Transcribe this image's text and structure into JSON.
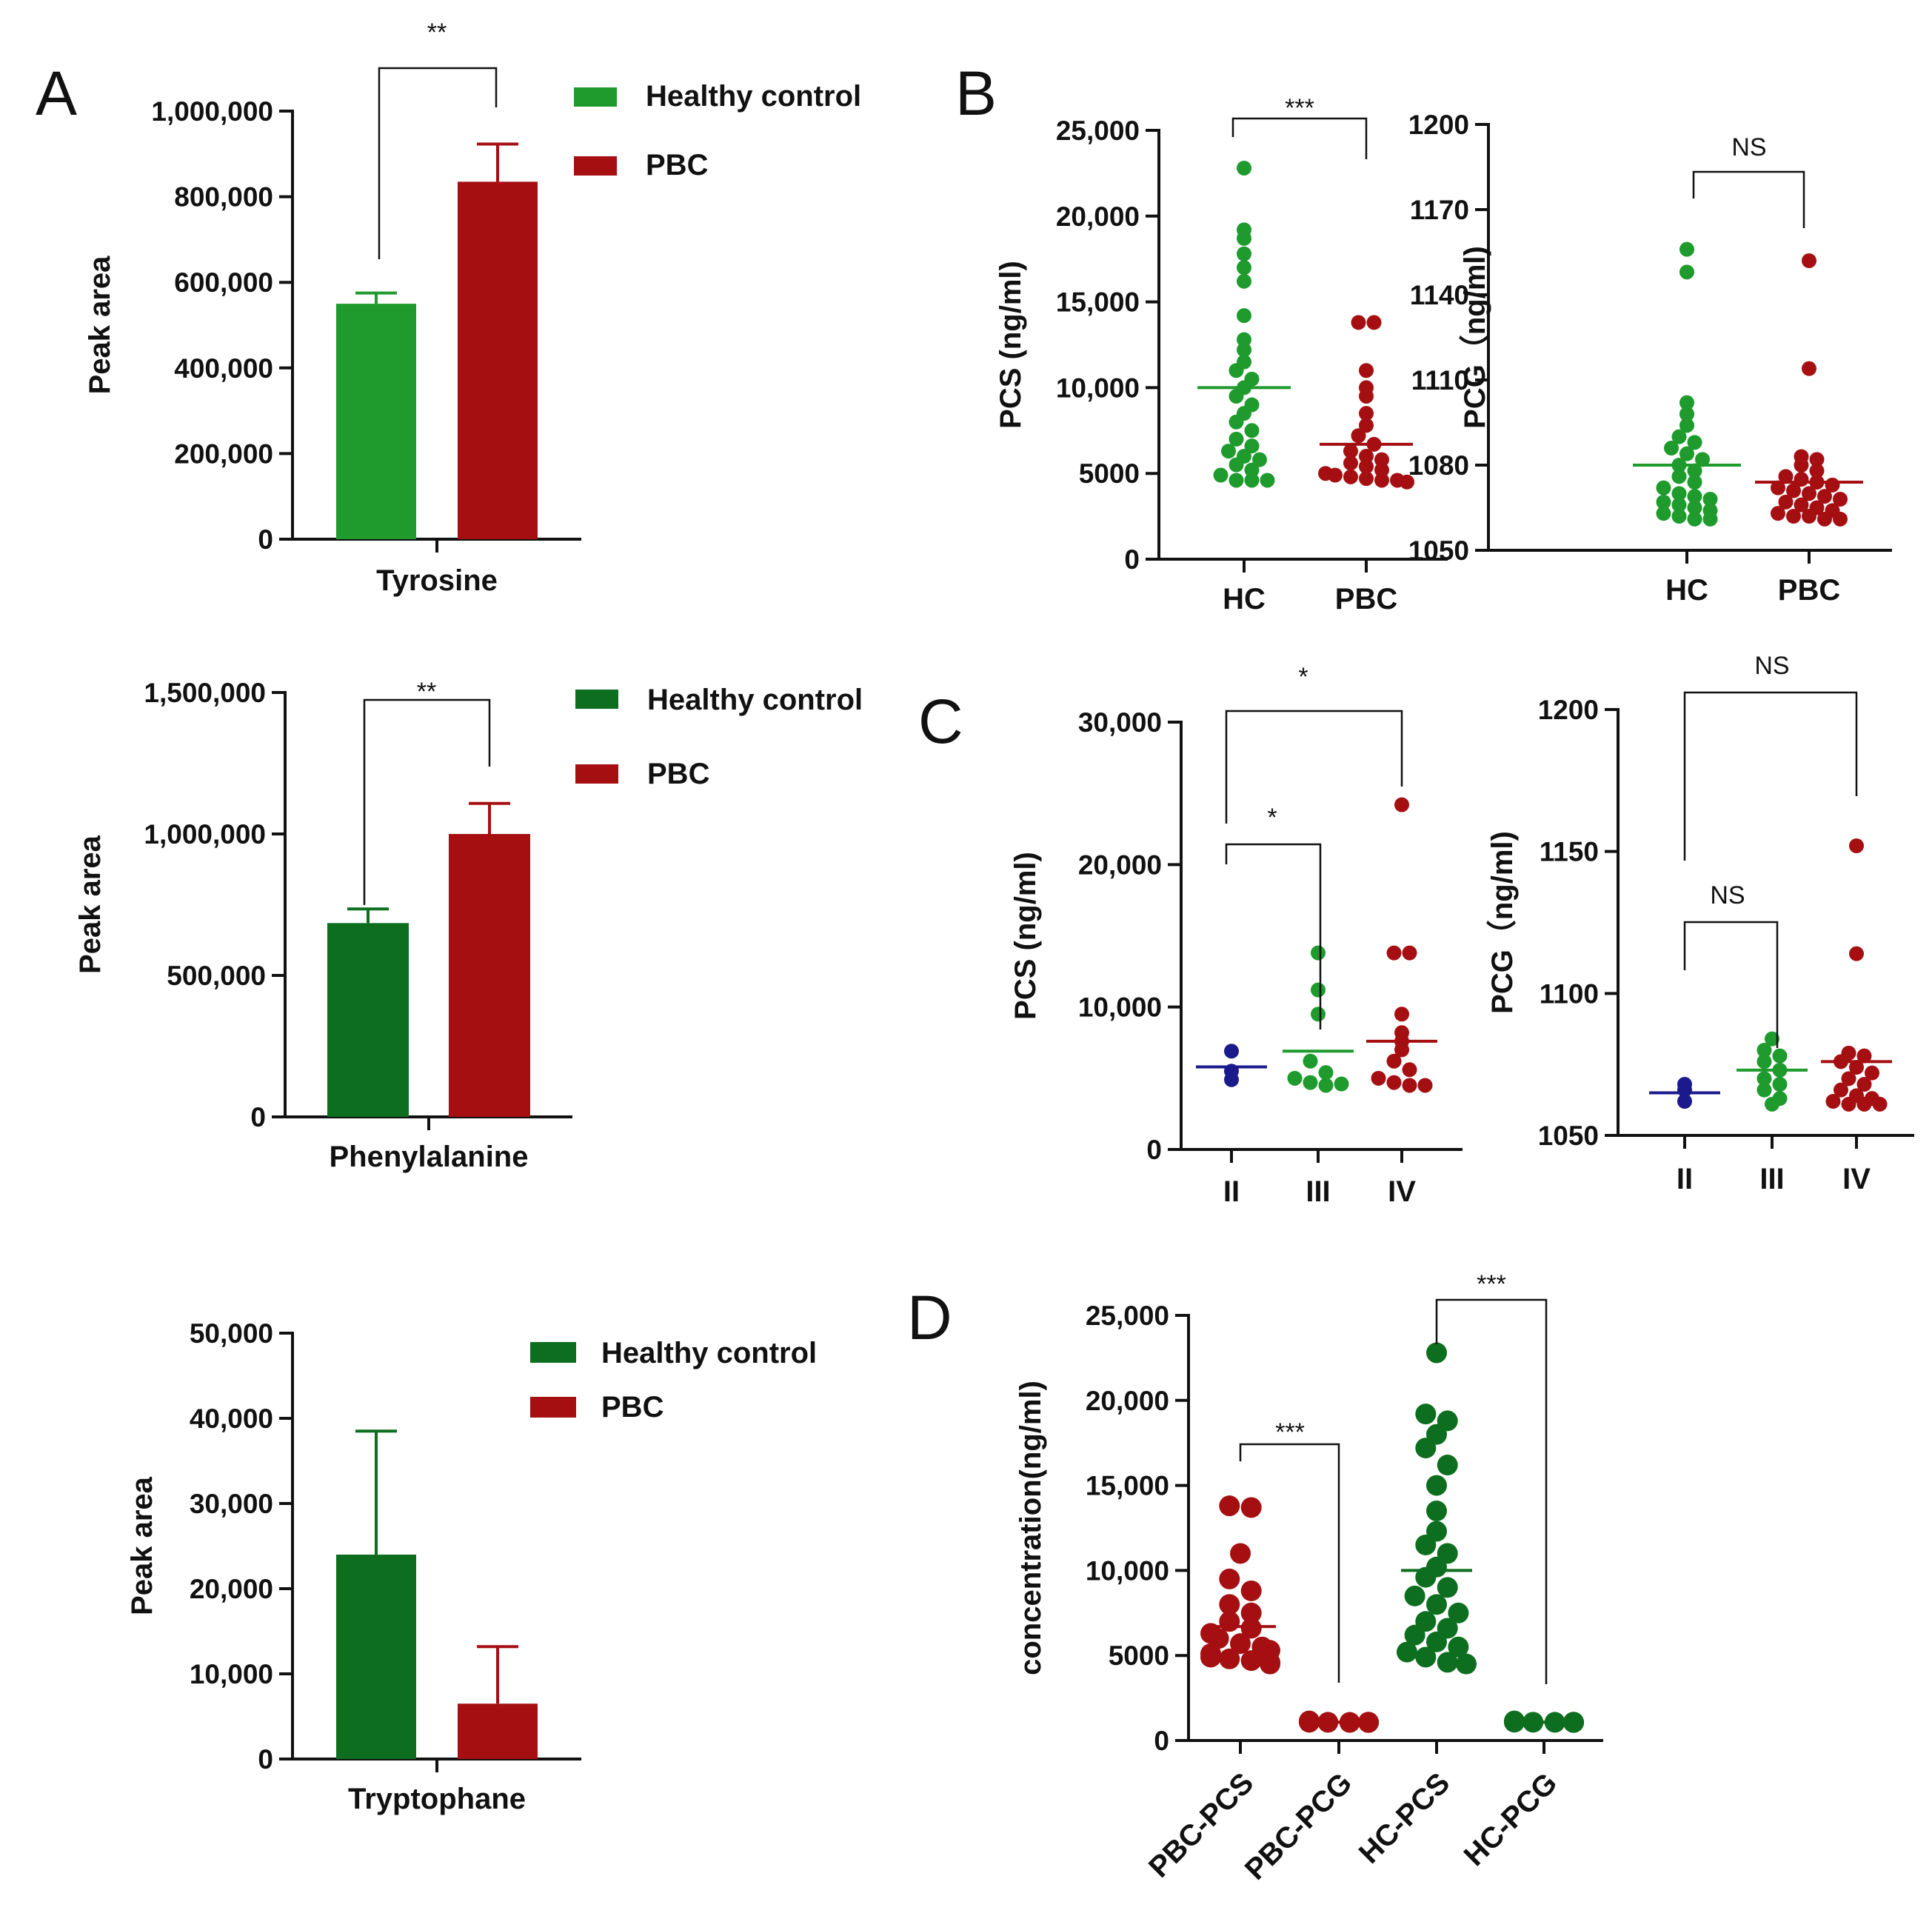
{
  "panel_labels": {
    "A": "A",
    "B": "B",
    "C": "C",
    "D": "D"
  },
  "colors": {
    "green": "#1f9a2d",
    "dark_green": "#0d6e1f",
    "red": "#a50f12",
    "blue": "#1a1a8c",
    "axis": "#111111"
  },
  "chart_data": [
    {
      "id": "A1",
      "type": "bar",
      "categories": [
        "Tyrosine"
      ],
      "ylabel": "Peak area",
      "ylim": [
        0,
        1000000
      ],
      "yticks": [
        0,
        200000,
        400000,
        600000,
        800000,
        1000000
      ],
      "ytick_labels": [
        "0",
        "200,000",
        "400,000",
        "600,000",
        "800,000",
        "1,000,000"
      ],
      "series": [
        {
          "name": "Healthy control",
          "values": [
            550000
          ],
          "error": [
            25000
          ],
          "color": "#1f9a2d"
        },
        {
          "name": "PBC",
          "values": [
            835000
          ],
          "error": [
            88000
          ],
          "color": "#a50f12"
        }
      ],
      "legend": [
        "Healthy control",
        "PBC"
      ],
      "significance": "**"
    },
    {
      "id": "A2",
      "type": "bar",
      "categories": [
        "Phenylalanine"
      ],
      "ylabel": "Peak area",
      "ylim": [
        0,
        1500000
      ],
      "yticks": [
        0,
        500000,
        1000000,
        1500000
      ],
      "ytick_labels": [
        "0",
        "500,000",
        "1,000,000",
        "1,500,000"
      ],
      "series": [
        {
          "name": "Healthy control",
          "values": [
            685000
          ],
          "error": [
            50000
          ],
          "color": "#0d6e1f"
        },
        {
          "name": "PBC",
          "values": [
            1000000
          ],
          "error": [
            108000
          ],
          "color": "#a50f12"
        }
      ],
      "legend": [
        "Healthy control",
        "PBC"
      ],
      "significance": "**"
    },
    {
      "id": "A3",
      "type": "bar",
      "categories": [
        "Tryptophane"
      ],
      "ylabel": "Peak area",
      "ylim": [
        0,
        50000
      ],
      "yticks": [
        0,
        10000,
        20000,
        30000,
        40000,
        50000
      ],
      "ytick_labels": [
        "0",
        "10,000",
        "20,000",
        "30,000",
        "40,000",
        "50,000"
      ],
      "series": [
        {
          "name": "Healthy control",
          "values": [
            24000
          ],
          "error": [
            14500
          ],
          "color": "#0d6e1f"
        },
        {
          "name": "PBC",
          "values": [
            6500
          ],
          "error": [
            6700
          ],
          "color": "#a50f12"
        }
      ],
      "legend": [
        "Healthy control",
        "PBC"
      ]
    },
    {
      "id": "B1",
      "type": "scatter",
      "categories": [
        "HC",
        "PBC"
      ],
      "ylabel": "PCS  (ng/ml)",
      "ylim": [
        0,
        25000
      ],
      "yticks": [
        0,
        5000,
        10000,
        15000,
        20000,
        25000
      ],
      "ytick_labels": [
        "0",
        "5000",
        "10,000",
        "15,000",
        "20,000",
        "25,000"
      ],
      "series": [
        {
          "name": "HC",
          "color": "#1f9a2d",
          "mean": 10000,
          "values": [
            22800,
            19200,
            18700,
            17800,
            17000,
            16200,
            14200,
            12800,
            12200,
            11500,
            11000,
            10500,
            10000,
            9500,
            9000,
            8500,
            8000,
            7500,
            7000,
            6600,
            6300,
            6000,
            5800,
            5500,
            5200,
            4900,
            4600,
            4600,
            4600
          ]
        },
        {
          "name": "PBC",
          "color": "#a50f12",
          "mean": 6700,
          "values": [
            13800,
            13800,
            11000,
            10000,
            9500,
            8500,
            7800,
            7200,
            6700,
            6300,
            6000,
            5800,
            5600,
            5400,
            5200,
            5000,
            4900,
            4800,
            4700,
            4600,
            4600,
            4500
          ]
        }
      ],
      "significance": "***"
    },
    {
      "id": "B2",
      "type": "scatter",
      "categories": [
        "HC",
        "PBC"
      ],
      "ylabel": "PCG（ng/ml)",
      "ylim": [
        1050,
        1200
      ],
      "yticks": [
        1050,
        1080,
        1110,
        1140,
        1170,
        1200
      ],
      "ytick_labels": [
        "1050",
        "1080",
        "1110",
        "1140",
        "1170",
        "1200"
      ],
      "series": [
        {
          "name": "HC",
          "color": "#1f9a2d",
          "mean": 1080,
          "values": [
            1156,
            1148,
            1102,
            1098,
            1094,
            1090,
            1088,
            1086,
            1084,
            1082,
            1080,
            1078,
            1076,
            1074,
            1072,
            1070,
            1069,
            1068,
            1067,
            1066,
            1065,
            1064,
            1063,
            1062,
            1061,
            1061
          ]
        },
        {
          "name": "PBC",
          "color": "#a50f12",
          "mean": 1074,
          "values": [
            1152,
            1114,
            1083,
            1082,
            1080,
            1078,
            1076,
            1075,
            1074,
            1073,
            1072,
            1071,
            1070,
            1069,
            1068,
            1067,
            1066,
            1065,
            1064,
            1063,
            1062,
            1062,
            1061,
            1061
          ]
        }
      ],
      "significance": "NS"
    },
    {
      "id": "C1",
      "type": "scatter",
      "categories": [
        "II",
        "III",
        "IV"
      ],
      "ylabel": "PCS  (ng/ml)",
      "ylim": [
        0,
        30000
      ],
      "yticks": [
        0,
        10000,
        20000,
        30000
      ],
      "ytick_labels": [
        "0",
        "10,000",
        "20,000",
        "30,000"
      ],
      "series": [
        {
          "name": "II",
          "color": "#1a1a8c",
          "mean": 5800,
          "values": [
            6900,
            5500,
            4900
          ]
        },
        {
          "name": "III",
          "color": "#1f9a2d",
          "mean": 6900,
          "values": [
            13800,
            11200,
            9500,
            6200,
            5400,
            5000,
            4700,
            4500,
            4600
          ]
        },
        {
          "name": "IV",
          "color": "#a50f12",
          "mean": 7600,
          "values": [
            24200,
            13800,
            13800,
            9500,
            8200,
            7600,
            7000,
            6200,
            5600,
            5000,
            4700,
            4500,
            4500
          ]
        }
      ],
      "significance": [
        {
          "pair": [
            "II",
            "III"
          ],
          "label": "*"
        },
        {
          "pair": [
            "II",
            "IV"
          ],
          "label": "*"
        }
      ]
    },
    {
      "id": "C2",
      "type": "scatter",
      "categories": [
        "II",
        "III",
        "IV"
      ],
      "ylabel": "PCG（ng/ml)",
      "ylim": [
        1050,
        1200
      ],
      "yticks": [
        1050,
        1100,
        1150,
        1200
      ],
      "ytick_labels": [
        "1050",
        "1100",
        "1150",
        "1200"
      ],
      "series": [
        {
          "name": "II",
          "color": "#1a1a8c",
          "mean": 1065,
          "values": [
            1068,
            1066,
            1062
          ]
        },
        {
          "name": "III",
          "color": "#1f9a2d",
          "mean": 1073,
          "values": [
            1084,
            1080,
            1078,
            1076,
            1073,
            1070,
            1068,
            1066,
            1063,
            1061
          ]
        },
        {
          "name": "IV",
          "color": "#a50f12",
          "mean": 1076,
          "values": [
            1152,
            1114,
            1079,
            1078,
            1076,
            1074,
            1072,
            1070,
            1068,
            1066,
            1064,
            1063,
            1062,
            1061,
            1061,
            1061
          ]
        }
      ],
      "significance": [
        {
          "pair": [
            "II",
            "III"
          ],
          "label": "NS"
        },
        {
          "pair": [
            "II",
            "IV"
          ],
          "label": "NS"
        }
      ]
    },
    {
      "id": "D",
      "type": "scatter",
      "categories": [
        "PBC-PCS",
        "PBC-PCG",
        "HC-PCS",
        "HC-PCG"
      ],
      "ylabel": "concentration(ng/ml)",
      "ylim": [
        0,
        25000
      ],
      "yticks": [
        0,
        5000,
        10000,
        15000,
        20000,
        25000
      ],
      "ytick_labels": [
        "0",
        "5000",
        "10,000",
        "15,000",
        "20,000",
        "25,000"
      ],
      "series": [
        {
          "name": "PBC-PCS",
          "color": "#a50f12",
          "mean": 6700,
          "values": [
            13800,
            13700,
            11000,
            9500,
            8800,
            8000,
            7500,
            7000,
            6600,
            6300,
            6000,
            5700,
            5500,
            5300,
            5100,
            4900,
            4800,
            4700,
            4600,
            4500
          ]
        },
        {
          "name": "PBC-PCG",
          "color": "#a50f12",
          "mean": 1080,
          "values": [
            1150,
            1110,
            1090,
            1080,
            1075,
            1070,
            1065,
            1060,
            1060,
            1060,
            1070,
            1080
          ]
        },
        {
          "name": "HC-PCS",
          "color": "#0d6e1f",
          "mean": 10000,
          "values": [
            22800,
            19200,
            18800,
            18000,
            17200,
            16200,
            15000,
            13500,
            12300,
            11500,
            11000,
            10200,
            9600,
            9000,
            8500,
            8000,
            7500,
            7000,
            6600,
            6200,
            5800,
            5500,
            5200,
            4900,
            4600,
            4500
          ]
        },
        {
          "name": "HC-PCG",
          "color": "#0d6e1f",
          "mean": 1080,
          "values": [
            1150,
            1100,
            1090,
            1085,
            1080,
            1075,
            1070,
            1065,
            1060,
            1060,
            1070,
            1080
          ]
        }
      ],
      "significance": [
        {
          "pair": [
            "PBC-PCS",
            "PBC-PCG"
          ],
          "label": "***"
        },
        {
          "pair": [
            "HC-PCS",
            "HC-PCG"
          ],
          "label": "***"
        }
      ]
    }
  ]
}
